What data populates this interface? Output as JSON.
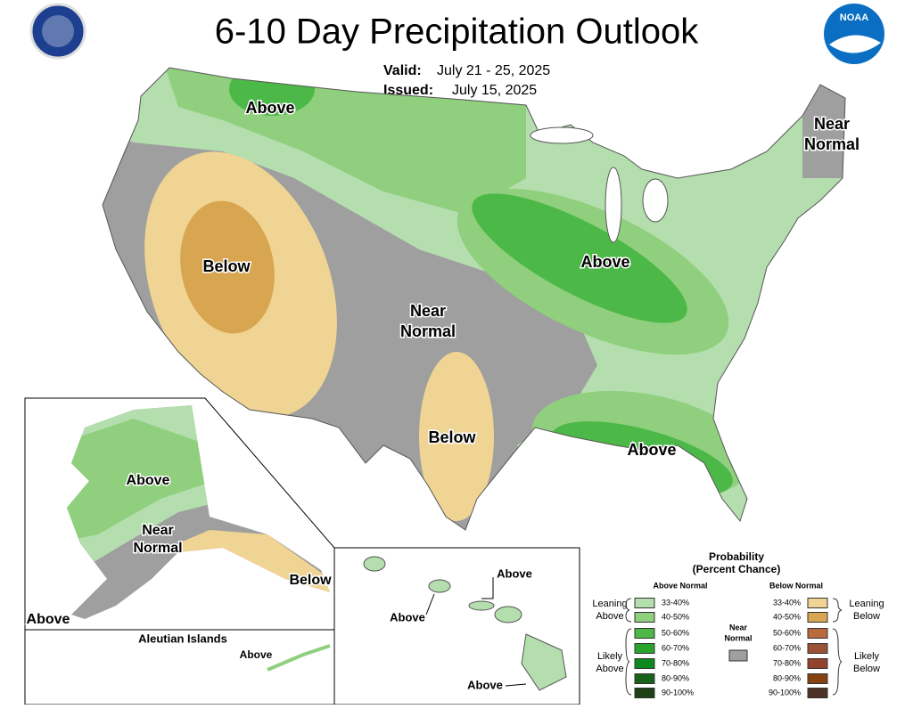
{
  "header": {
    "title": "6-10 Day Precipitation Outlook",
    "valid_label": "Valid:",
    "valid": "July 21 - 25, 2025",
    "issued_label": "Issued:",
    "issued": "July 15, 2025"
  },
  "map_labels": [
    {
      "lines": [
        "Above"
      ]
    },
    {
      "lines": [
        "Near",
        "Normal"
      ]
    },
    {
      "lines": [
        "Below"
      ]
    },
    {
      "lines": [
        "Near",
        "Normal"
      ]
    },
    {
      "lines": [
        "Above"
      ]
    },
    {
      "lines": [
        "Below"
      ]
    },
    {
      "lines": [
        "Above"
      ]
    }
  ],
  "alaska": {
    "labels": [
      {
        "lines": [
          "Above"
        ]
      },
      {
        "lines": [
          "Near",
          "Normal"
        ]
      },
      {
        "lines": [
          "Below"
        ]
      },
      {
        "lines": [
          "Above"
        ]
      }
    ]
  },
  "aleutian": {
    "title": "Aleutian Islands",
    "label": "Above"
  },
  "hawaii": {
    "labels": [
      "Above",
      "Above",
      "Above"
    ]
  },
  "legend": {
    "title_lines": [
      "Probability",
      "(Percent Chance)"
    ],
    "above_heading": "Above Normal",
    "below_heading": "Below Normal",
    "leaning_above": [
      "Leaning",
      "Above"
    ],
    "likely_above": [
      "Likely",
      "Above"
    ],
    "leaning_below": [
      "Leaning",
      "Below"
    ],
    "likely_below": [
      "Likely",
      "Below"
    ],
    "near": {
      "lines": [
        "Near",
        "Normal"
      ],
      "color": "#9f9f9f"
    },
    "above": [
      {
        "label": "33-40%",
        "color": "#b4deae"
      },
      {
        "label": "40-50%",
        "color": "#8fcf7d"
      },
      {
        "label": "50-60%",
        "color": "#4cb847"
      },
      {
        "label": "60-70%",
        "color": "#2aa32a"
      },
      {
        "label": "70-80%",
        "color": "#0d8a1f"
      },
      {
        "label": "80-90%",
        "color": "#17631c"
      },
      {
        "label": "90-100%",
        "color": "#1f4214"
      }
    ],
    "below": [
      {
        "label": "33-40%",
        "color": "#f0d493"
      },
      {
        "label": "40-50%",
        "color": "#d8a550"
      },
      {
        "label": "50-60%",
        "color": "#bb6a3c"
      },
      {
        "label": "60-70%",
        "color": "#9b5136"
      },
      {
        "label": "70-80%",
        "color": "#91432c"
      },
      {
        "label": "80-90%",
        "color": "#854210"
      },
      {
        "label": "90-100%",
        "color": "#4e3227"
      }
    ]
  }
}
